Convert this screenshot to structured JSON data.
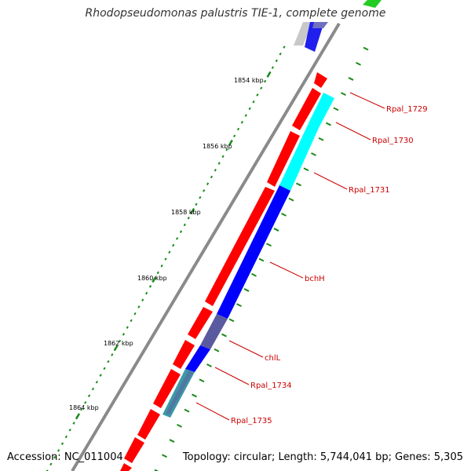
{
  "title": "Rhodopseudomonas palustris TIE-1, complete genome",
  "footer": {
    "accession": "Accession: NC_011004",
    "summary": "Topology: circular; Length: 5,744,041 bp; Genes: 5,305"
  },
  "scale": {
    "ticks": [
      {
        "label": "1854 kbp"
      },
      {
        "label": "1856 kbp"
      },
      {
        "label": "1858 kbp"
      },
      {
        "label": "1860 kbp"
      },
      {
        "label": "1862 kbp"
      },
      {
        "label": "1864 kbp"
      }
    ]
  },
  "genes": [
    {
      "name": "Rpal_1729",
      "color": "#ff0000"
    },
    {
      "name": "Rpal_1730",
      "color": "#00ffff"
    },
    {
      "name": "Rpal_1731",
      "color": "#00ffff"
    },
    {
      "name": "bchH",
      "color": "#0000ff"
    },
    {
      "name": "chlL",
      "color": "#5a5aa0"
    },
    {
      "name": "Rpal_1734",
      "color": "#0000ff"
    },
    {
      "name": "Rpal_1735",
      "color": "#3a9aa8"
    }
  ],
  "colors": {
    "forward_strand": "#ff0000",
    "backbone": "#888888",
    "label_line": "#cc0000",
    "tick": "#1a8a1a",
    "gc_plus": "#22cc22"
  }
}
